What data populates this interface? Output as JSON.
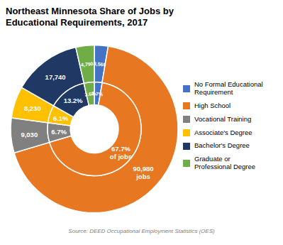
{
  "chart_data": {
    "type": "pie",
    "title": "Northeast Minnesota Share of Jobs by\nEducational Requirements, 2017",
    "annotations": [
      "Source: DEED Occupational Employment Statistics (OES)"
    ],
    "categories": [
      "No Formal Educational\nRequirement",
      "High School",
      "Vocational Training",
      "Associate's Degree",
      "Bachelor's Degree",
      "Graduate or\nProfessional Degree"
    ],
    "colors": [
      "#4472C4",
      "#E87722",
      "#808080",
      "#FFC000",
      "#1F3864",
      "#70AD47"
    ],
    "values": [
      2.7,
      67.7,
      6.7,
      6.1,
      13.2,
      3.6
    ],
    "value_labels": [
      "2.7%",
      "67.7%\nof jobs",
      "6.7%",
      "6.1%",
      "13.2%",
      "3.6%"
    ],
    "jobs": [
      3560,
      90980,
      9030,
      8230,
      17740,
      4790
    ],
    "jobs_labels": [
      "3,560",
      "90,980\njobs",
      "9,030",
      "8,230",
      "17,740",
      "4,790"
    ],
    "data_labels": true,
    "legend": "right"
  }
}
